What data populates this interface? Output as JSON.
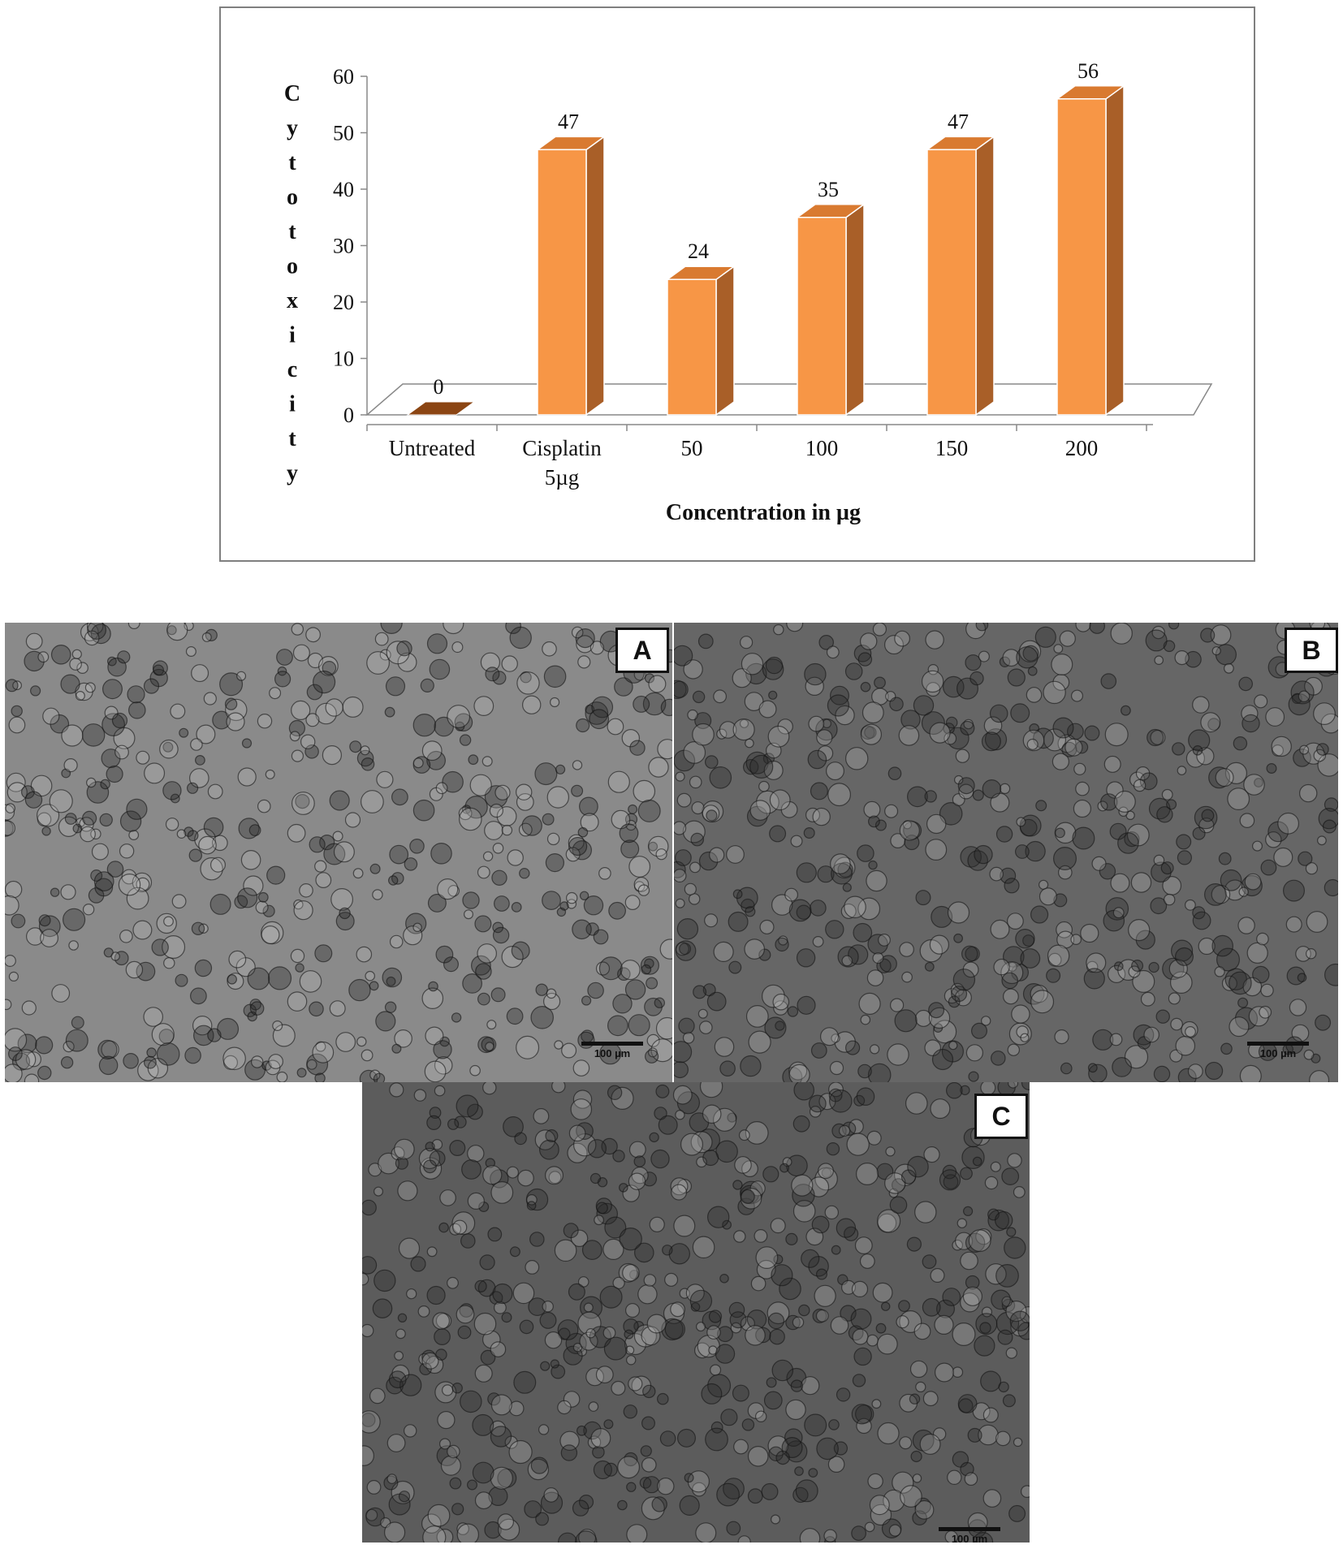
{
  "chart_data": {
    "type": "bar",
    "categories": [
      [
        "Untreated"
      ],
      [
        "Cisplatin",
        "5µg"
      ],
      [
        "50"
      ],
      [
        "100"
      ],
      [
        "150"
      ],
      [
        "200"
      ]
    ],
    "values": [
      0,
      47,
      24,
      35,
      47,
      56
    ],
    "data_labels": [
      "0",
      "47",
      "24",
      "35",
      "47",
      "56"
    ],
    "xlabel": "Concentration in µg",
    "ylabel": "Cytotoxicity",
    "ylim": [
      0,
      60
    ],
    "yticks": [
      0,
      10,
      20,
      30,
      40,
      50,
      60
    ],
    "grid": false,
    "three_d": true,
    "colors": {
      "front": "#F79646",
      "side": "#A95F28",
      "top": "#D97A30",
      "zero_bar": "#8B4513",
      "axis": "#888888",
      "text": "#111111"
    }
  },
  "panels": [
    {
      "label": "A",
      "scale_text": "100 µm",
      "tone": "#8a8a8a"
    },
    {
      "label": "B",
      "scale_text": "100 µm",
      "tone": "#666666"
    },
    {
      "label": "C",
      "scale_text": "100 µm",
      "tone": "#5c5c5c"
    }
  ]
}
